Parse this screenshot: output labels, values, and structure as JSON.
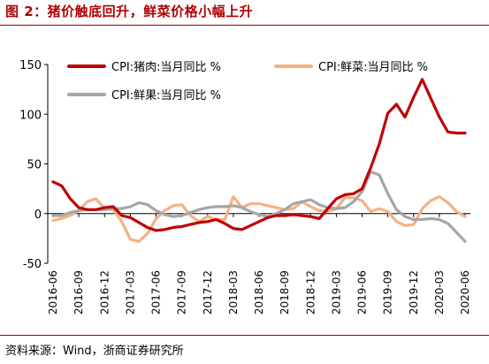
{
  "figure": {
    "title": "图 2：猪价触底回升，鲜菜价格小幅上升",
    "source": "资料来源：Wind，浙商证券研究所"
  },
  "colors": {
    "brand": "#b00000",
    "pork": "#c00000",
    "vegetables": "#f5b183",
    "fruits": "#a6a6a6"
  },
  "chart_data": {
    "type": "line",
    "title": "",
    "xlabel": "",
    "ylabel": "",
    "ylim": [
      -50,
      150
    ],
    "y_ticks": [
      "-50",
      "0",
      "50",
      "100",
      "150"
    ],
    "x": [
      "2016-06",
      "2016-07",
      "2016-08",
      "2016-09",
      "2016-10",
      "2016-11",
      "2016-12",
      "2017-01",
      "2017-02",
      "2017-03",
      "2017-04",
      "2017-05",
      "2017-06",
      "2017-07",
      "2017-08",
      "2017-09",
      "2017-10",
      "2017-11",
      "2017-12",
      "2018-01",
      "2018-02",
      "2018-03",
      "2018-04",
      "2018-05",
      "2018-06",
      "2018-07",
      "2018-08",
      "2018-09",
      "2018-10",
      "2018-11",
      "2018-12",
      "2019-01",
      "2019-02",
      "2019-03",
      "2019-04",
      "2019-05",
      "2019-06",
      "2019-07",
      "2019-08",
      "2019-09",
      "2019-10",
      "2019-11",
      "2019-12",
      "2020-01",
      "2020-02",
      "2020-03",
      "2020-04",
      "2020-05",
      "2020-06"
    ],
    "x_tick_labels": [
      "2016-06",
      "2016-09",
      "2016-12",
      "2017-03",
      "2017-06",
      "2017-09",
      "2017-12",
      "2018-03",
      "2018-06",
      "2018-09",
      "2018-12",
      "2019-03",
      "2019-06",
      "2019-09",
      "2019-12",
      "2020-03",
      "2020-06"
    ],
    "grid": false,
    "legend": "top",
    "series": [
      {
        "name": "CPI:猪肉:当月同比 %",
        "color": "#c00000",
        "values": [
          32,
          28,
          15,
          6,
          4,
          4,
          6,
          7,
          -2,
          -4,
          -9,
          -14,
          -17,
          -16,
          -14,
          -13,
          -11,
          -9,
          -8,
          -6,
          -10,
          -15,
          -16,
          -12,
          -8,
          -4,
          -2,
          -2,
          -1,
          -2,
          -3,
          -5,
          5,
          15,
          19,
          20,
          25,
          46,
          70,
          101,
          110,
          97,
          117,
          135,
          116,
          97,
          82,
          81,
          81
        ]
      },
      {
        "name": "CPI:鲜菜:当月同比 %",
        "color": "#f5b183",
        "values": [
          -7,
          -5,
          -2,
          3,
          12,
          15,
          5,
          4,
          -8,
          -26,
          -28,
          -20,
          -5,
          3,
          8,
          9,
          -2,
          -8,
          -3,
          -6,
          -6,
          17,
          6,
          10,
          10,
          8,
          6,
          4,
          5,
          12,
          7,
          3,
          2,
          5,
          16,
          16,
          13,
          2,
          5,
          2,
          -8,
          -12,
          -11,
          5,
          13,
          17,
          11,
          2,
          -3
        ]
      },
      {
        "name": "CPI:鲜果:当月同比 %",
        "color": "#a6a6a6",
        "values": [
          -2,
          -2,
          1,
          3,
          4,
          4,
          4,
          5,
          5,
          7,
          11,
          9,
          3,
          -1,
          -3,
          -2,
          1,
          4,
          6,
          7,
          7,
          8,
          6,
          2,
          -1,
          -3,
          0,
          4,
          10,
          12,
          14,
          9,
          6,
          5,
          6,
          12,
          22,
          42,
          39,
          20,
          4,
          -3,
          -6,
          -6,
          -5,
          -6,
          -10,
          -19,
          -28
        ]
      }
    ]
  }
}
